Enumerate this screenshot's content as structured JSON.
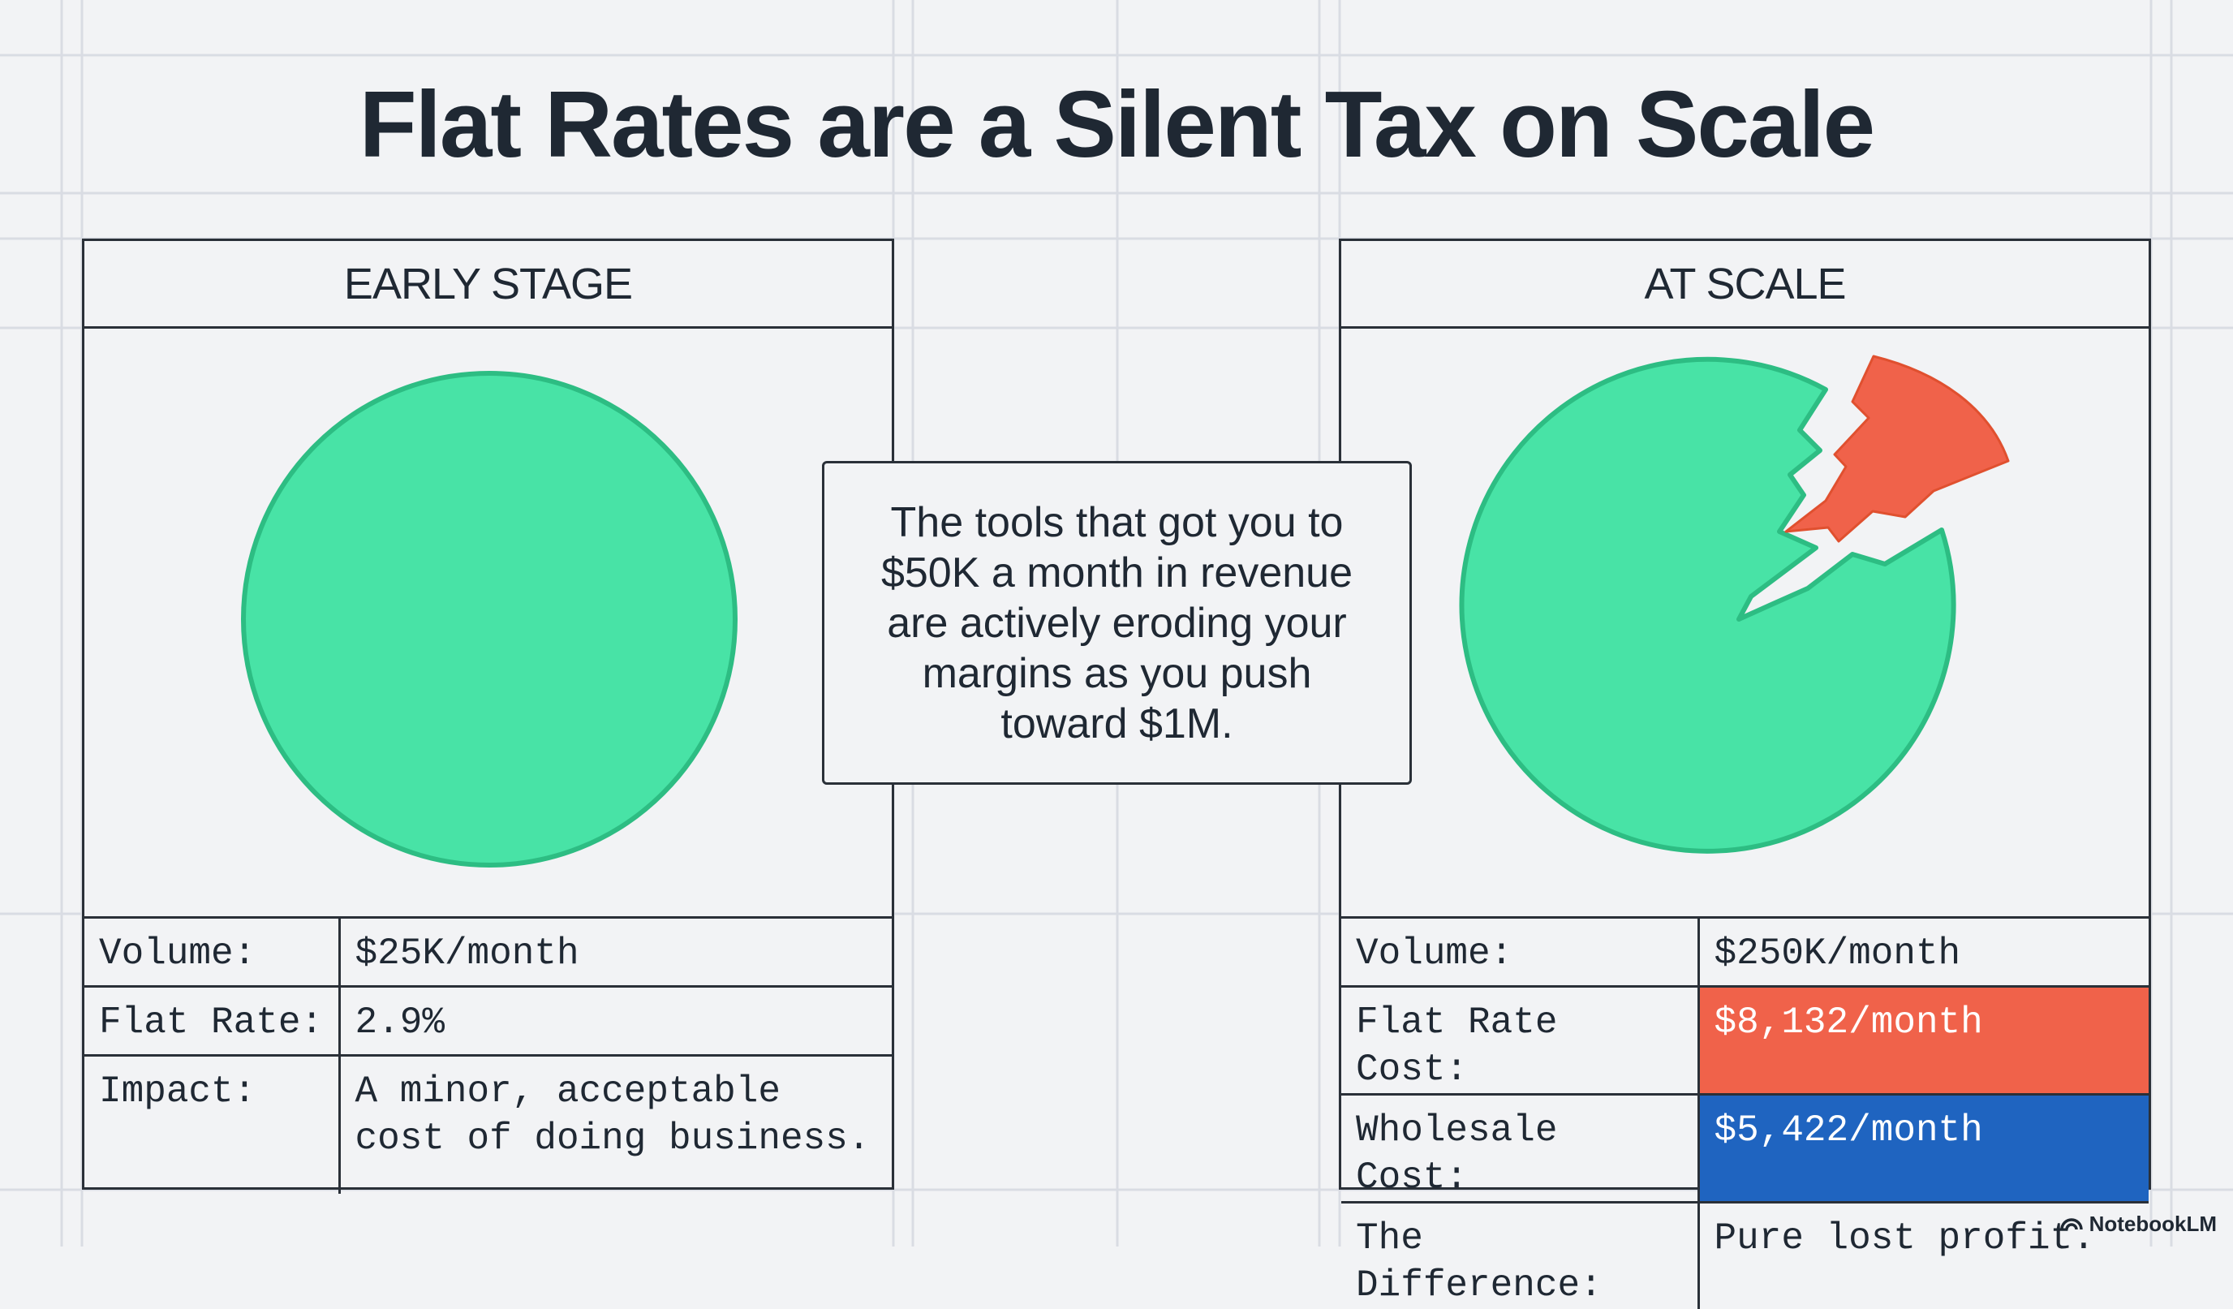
{
  "title": "Flat Rates are a Silent Tax on Scale",
  "panels": {
    "early": {
      "header": "EARLY STAGE",
      "rows": [
        {
          "label": "Volume:",
          "value": "$25K/month"
        },
        {
          "label": "Flat Rate:",
          "value": "2.9%"
        },
        {
          "label": "Impact:",
          "value": "A minor, acceptable cost of doing business."
        }
      ]
    },
    "scale": {
      "header": "AT SCALE",
      "rows": [
        {
          "label": "Volume:",
          "value": "$250K/month"
        },
        {
          "label": "Flat Rate Cost:",
          "value": "$8,132/month"
        },
        {
          "label": "Wholesale Cost:",
          "value": "$5,422/month"
        },
        {
          "label": "The Difference:",
          "value": "Pure lost profit."
        }
      ]
    }
  },
  "callout": "The tools that got you to $50K a month in revenue are actively eroding your margins as you push toward $1M.",
  "brand": {
    "name": "NotebookLM",
    "icon": "notebooklm-logo-icon"
  },
  "colors": {
    "pie_green": "#48e3a6",
    "pie_green_stroke": "#2dbd83",
    "slice_red": "#f0624a",
    "highlight_red": "#f0624a",
    "highlight_blue": "#1f64c0",
    "text_dark": "#1f2833",
    "background": "#f2f3f5",
    "grid": "#d9dce3"
  }
}
